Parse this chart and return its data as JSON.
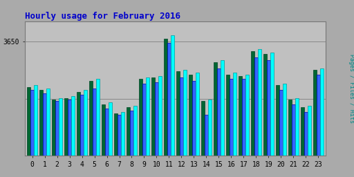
{
  "title": "Hourly usage for February 2016",
  "title_color": "#0000cc",
  "title_fontsize": 9,
  "ylabel_right": "Pages / Files / Hits",
  "hours": [
    0,
    1,
    2,
    3,
    4,
    5,
    6,
    7,
    8,
    9,
    10,
    11,
    12,
    13,
    14,
    15,
    16,
    17,
    18,
    19,
    20,
    21,
    22,
    23
  ],
  "pages": [
    2200,
    2100,
    1800,
    1850,
    2050,
    2400,
    1650,
    1350,
    1550,
    2450,
    2500,
    3750,
    2700,
    2600,
    1750,
    3000,
    2600,
    2550,
    3350,
    3250,
    2250,
    1800,
    1550,
    2750
  ],
  "files": [
    2100,
    2000,
    1750,
    1800,
    1950,
    2150,
    1500,
    1300,
    1450,
    2300,
    2350,
    3600,
    2500,
    2400,
    1300,
    2800,
    2450,
    2450,
    3150,
    3050,
    2100,
    1650,
    1400,
    2600
  ],
  "hits": [
    2250,
    2150,
    1850,
    1900,
    2100,
    2450,
    1700,
    1400,
    1600,
    2500,
    2550,
    3850,
    2750,
    2650,
    1800,
    3050,
    2650,
    2600,
    3400,
    3300,
    2300,
    1850,
    1600,
    2800
  ],
  "pages_color": "#006633",
  "files_color": "#3366ff",
  "hits_color": "#00ffff",
  "pages_edge": "#004422",
  "files_edge": "#0000aa",
  "hits_edge": "#009999",
  "bg_color": "#aaaaaa",
  "plot_bg_color": "#c0c0c0",
  "ytick_value": 3650,
  "ytick_label": "3650",
  "ylim": [
    0,
    4300
  ],
  "xlim": [
    -0.6,
    23.6
  ],
  "bar_width": 0.28,
  "figsize": [
    5.12,
    2.56
  ],
  "dpi": 100,
  "ylabel_colors": [
    "#808080",
    "#0000cc",
    "#00cccc"
  ],
  "ylabel_parts": [
    "Pages",
    " / ",
    "Files",
    " / ",
    "Hits"
  ]
}
